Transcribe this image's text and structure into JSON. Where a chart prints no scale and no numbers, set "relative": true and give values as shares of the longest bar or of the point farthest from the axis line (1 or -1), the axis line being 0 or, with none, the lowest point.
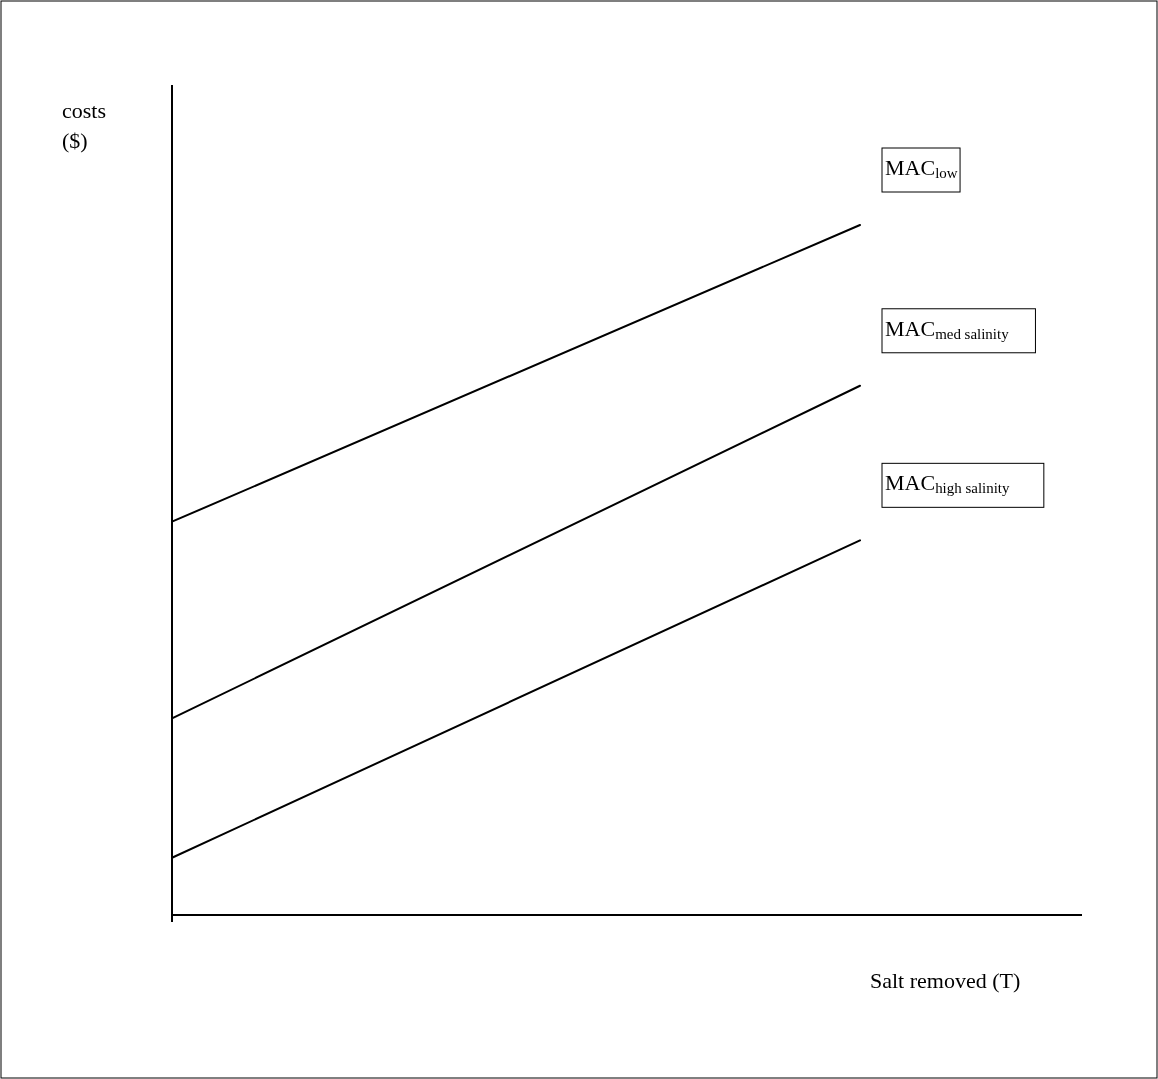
{
  "chart_data": {
    "type": "line",
    "xlabel": "Salt removed (T)",
    "ylabel": "costs ($)",
    "relative": true,
    "categories": [
      null,
      null
    ],
    "series": [
      {
        "name": "MAC$_{low}$",
        "color": "#000000",
        "values": [
          0.57,
          1
        ]
      },
      {
        "name": "MAC$_{med salinity}$",
        "color": "#000000",
        "values": [
          0.285,
          0.767
        ]
      },
      {
        "name": "MAC$_{high salinity}$",
        "color": "#000000",
        "values": [
          0.083,
          0.543
        ]
      }
    ]
  }
}
